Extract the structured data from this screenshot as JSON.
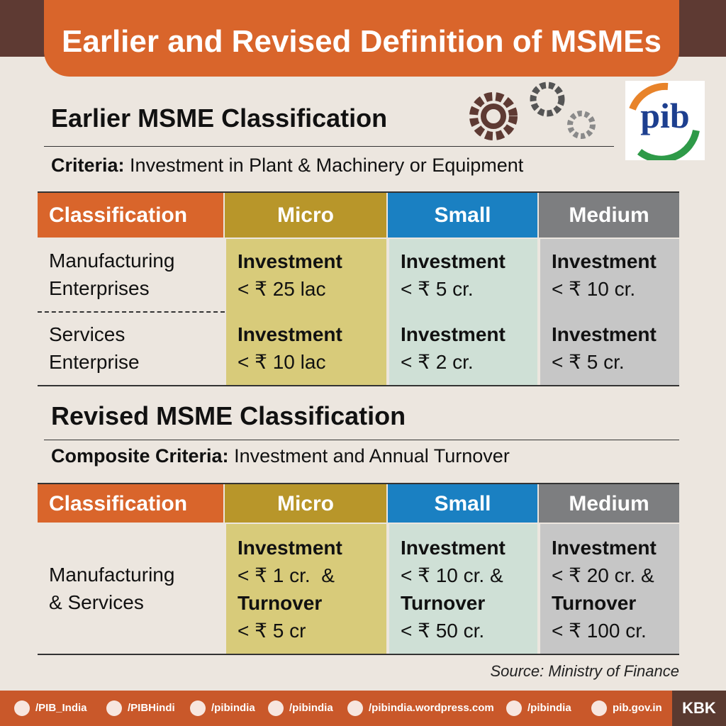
{
  "header": {
    "title": "Earlier and Revised Definition of MSMEs"
  },
  "logo": {
    "text": "pib"
  },
  "earlier": {
    "heading": "Earlier MSME Classification",
    "criteria_label": "Criteria:",
    "criteria_text": "Investment in Plant & Machinery or Equipment",
    "table": {
      "header": [
        "Classification",
        "Micro",
        "Small",
        "Medium"
      ],
      "rows": [
        {
          "label": [
            "Manufacturing",
            "Enterprises"
          ],
          "cells": [
            {
              "investment_label": "Investment",
              "investment": "< ₹ 25 lac"
            },
            {
              "investment_label": "Investment",
              "investment": "< ₹ 5 cr."
            },
            {
              "investment_label": "Investment",
              "investment": "< ₹ 10 cr."
            }
          ]
        },
        {
          "label": [
            "Services",
            "Enterprise"
          ],
          "cells": [
            {
              "investment_label": "Investment",
              "investment": "< ₹ 10 lac"
            },
            {
              "investment_label": "Investment",
              "investment": "< ₹ 2 cr."
            },
            {
              "investment_label": "Investment",
              "investment": "< ₹ 5 cr."
            }
          ]
        }
      ]
    }
  },
  "revised": {
    "heading": "Revised MSME Classification",
    "criteria_label": "Composite Criteria:",
    "criteria_text": "Investment and Annual Turnover",
    "table": {
      "header": [
        "Classification",
        "Micro",
        "Small",
        "Medium"
      ],
      "rows": [
        {
          "label": [
            "Manufacturing",
            "& Services"
          ],
          "cells": [
            {
              "investment_label": "Investment",
              "investment": "< ₹ 1 cr.  &",
              "turnover_label": "Turnover",
              "turnover": "< ₹ 5 cr"
            },
            {
              "investment_label": "Investment",
              "investment": "< ₹ 10 cr. &",
              "turnover_label": "Turnover",
              "turnover": "< ₹ 50 cr."
            },
            {
              "investment_label": "Investment",
              "investment": "< ₹ 20 cr. &",
              "turnover_label": "Turnover",
              "turnover": "< ₹ 100 cr."
            }
          ]
        }
      ]
    }
  },
  "source": "Source: Ministry of Finance",
  "footer": {
    "links": [
      "/PIB_India",
      "/PIBHindi",
      "/pibindia",
      "/pibindia",
      "/pibindia.wordpress.com",
      "/pibindia",
      "pib.gov.in"
    ],
    "tag": "KBK"
  }
}
